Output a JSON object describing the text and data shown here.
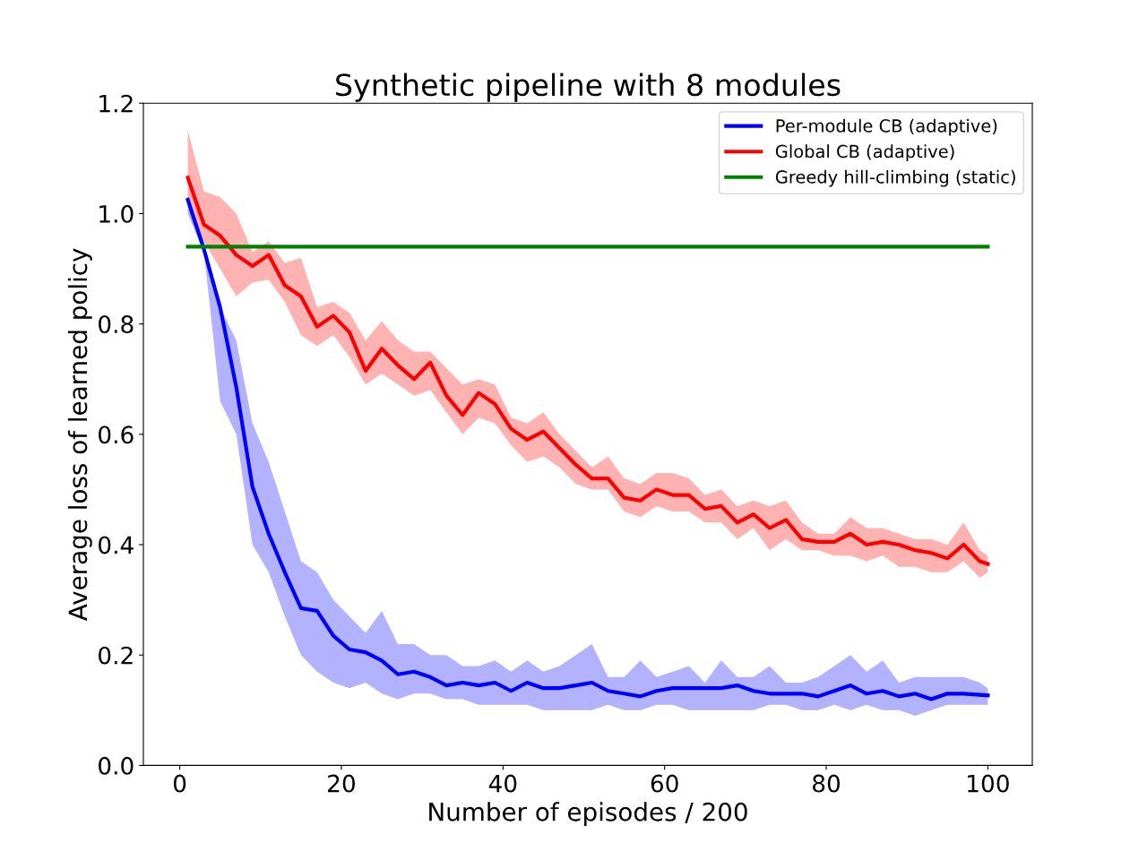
{
  "chart_data": {
    "type": "line",
    "title": "Synthetic pipeline with 8 modules",
    "xlabel": "Number of episodes / 200",
    "ylabel": "Average loss of learned policy",
    "xlim": [
      -4.5,
      105.5
    ],
    "xticks": [
      0,
      20,
      40,
      60,
      80,
      100
    ],
    "ylim": [
      0,
      1.2
    ],
    "yticks": [
      {
        "value": 0,
        "label": "0.0"
      },
      {
        "value": 0.2,
        "label": "0.2"
      },
      {
        "value": 0.4,
        "label": "0.4"
      },
      {
        "value": 0.6,
        "label": "0.6"
      },
      {
        "value": 0.8,
        "label": "0.8"
      },
      {
        "value": 1.0,
        "label": "1.0"
      },
      {
        "value": 1.2,
        "label": "1.2"
      }
    ],
    "grid": false,
    "legend": "top right",
    "line_style": "solid",
    "marker": "none",
    "series": [
      {
        "name": "Per-module CB (adaptive)",
        "color": "#0000ff",
        "x": [
          1,
          3,
          5,
          7,
          9,
          11,
          13,
          15,
          17,
          19,
          21,
          23,
          25,
          27,
          29,
          31,
          33,
          35,
          37,
          39,
          41,
          43,
          45,
          47,
          49,
          51,
          53,
          55,
          57,
          59,
          61,
          63,
          65,
          67,
          69,
          71,
          73,
          75,
          77,
          79,
          81,
          83,
          85,
          87,
          89,
          91,
          93,
          95,
          97,
          99,
          100
        ],
        "values": [
          1.025,
          0.935,
          0.83,
          0.685,
          0.505,
          0.42,
          0.35,
          0.285,
          0.28,
          0.235,
          0.21,
          0.205,
          0.19,
          0.165,
          0.17,
          0.16,
          0.145,
          0.15,
          0.145,
          0.15,
          0.135,
          0.15,
          0.14,
          0.14,
          0.145,
          0.15,
          0.135,
          0.13,
          0.125,
          0.135,
          0.14,
          0.14,
          0.14,
          0.14,
          0.145,
          0.135,
          0.13,
          0.13,
          0.13,
          0.125,
          0.135,
          0.145,
          0.13,
          0.135,
          0.125,
          0.13,
          0.12,
          0.13,
          0.13,
          0.128,
          0.127
        ],
        "lower": [
          1.0,
          0.93,
          0.66,
          0.6,
          0.4,
          0.35,
          0.27,
          0.2,
          0.17,
          0.15,
          0.14,
          0.15,
          0.13,
          0.12,
          0.13,
          0.13,
          0.12,
          0.12,
          0.11,
          0.11,
          0.11,
          0.11,
          0.1,
          0.1,
          0.1,
          0.1,
          0.11,
          0.1,
          0.1,
          0.11,
          0.11,
          0.1,
          0.1,
          0.1,
          0.1,
          0.1,
          0.11,
          0.11,
          0.1,
          0.1,
          0.11,
          0.1,
          0.11,
          0.1,
          0.1,
          0.09,
          0.1,
          0.11,
          0.11,
          0.11,
          0.11
        ],
        "upper": [
          1.03,
          0.95,
          0.83,
          0.77,
          0.62,
          0.55,
          0.46,
          0.37,
          0.35,
          0.3,
          0.27,
          0.24,
          0.28,
          0.22,
          0.22,
          0.2,
          0.2,
          0.18,
          0.18,
          0.19,
          0.17,
          0.19,
          0.17,
          0.18,
          0.2,
          0.22,
          0.16,
          0.16,
          0.19,
          0.16,
          0.17,
          0.18,
          0.15,
          0.19,
          0.16,
          0.16,
          0.18,
          0.15,
          0.15,
          0.16,
          0.18,
          0.2,
          0.17,
          0.19,
          0.15,
          0.16,
          0.16,
          0.16,
          0.16,
          0.15,
          0.14
        ]
      },
      {
        "name": "Global CB (adaptive)",
        "color": "#ff0000",
        "x": [
          1,
          3,
          5,
          7,
          9,
          11,
          13,
          15,
          17,
          19,
          21,
          23,
          25,
          27,
          29,
          31,
          33,
          35,
          37,
          39,
          41,
          43,
          45,
          47,
          49,
          51,
          53,
          55,
          57,
          59,
          61,
          63,
          65,
          67,
          69,
          71,
          73,
          75,
          77,
          79,
          81,
          83,
          85,
          87,
          89,
          91,
          93,
          95,
          97,
          99,
          100
        ],
        "values": [
          1.065,
          0.98,
          0.96,
          0.925,
          0.905,
          0.925,
          0.87,
          0.85,
          0.795,
          0.815,
          0.785,
          0.715,
          0.755,
          0.725,
          0.7,
          0.73,
          0.67,
          0.635,
          0.675,
          0.655,
          0.61,
          0.59,
          0.605,
          0.575,
          0.545,
          0.52,
          0.52,
          0.485,
          0.48,
          0.5,
          0.49,
          0.49,
          0.465,
          0.47,
          0.44,
          0.455,
          0.43,
          0.445,
          0.41,
          0.405,
          0.405,
          0.42,
          0.4,
          0.405,
          0.4,
          0.39,
          0.385,
          0.375,
          0.4,
          0.37,
          0.365
        ],
        "lower": [
          1.02,
          0.95,
          0.9,
          0.85,
          0.875,
          0.88,
          0.84,
          0.78,
          0.76,
          0.78,
          0.74,
          0.69,
          0.71,
          0.69,
          0.67,
          0.68,
          0.64,
          0.6,
          0.63,
          0.62,
          0.58,
          0.55,
          0.56,
          0.54,
          0.51,
          0.5,
          0.5,
          0.46,
          0.45,
          0.47,
          0.46,
          0.46,
          0.44,
          0.44,
          0.41,
          0.43,
          0.39,
          0.41,
          0.39,
          0.39,
          0.38,
          0.38,
          0.37,
          0.38,
          0.36,
          0.36,
          0.35,
          0.35,
          0.37,
          0.34,
          0.35
        ],
        "upper": [
          1.15,
          1.04,
          1.03,
          1.0,
          0.93,
          0.95,
          0.91,
          0.92,
          0.83,
          0.84,
          0.82,
          0.77,
          0.805,
          0.77,
          0.75,
          0.75,
          0.72,
          0.69,
          0.7,
          0.69,
          0.63,
          0.62,
          0.64,
          0.6,
          0.57,
          0.54,
          0.56,
          0.52,
          0.51,
          0.53,
          0.53,
          0.52,
          0.49,
          0.5,
          0.47,
          0.48,
          0.47,
          0.48,
          0.44,
          0.42,
          0.42,
          0.45,
          0.43,
          0.43,
          0.42,
          0.41,
          0.41,
          0.4,
          0.44,
          0.39,
          0.38
        ]
      },
      {
        "name": "Greedy hill-climbing (static)",
        "color": "#008000",
        "x": [
          1,
          100
        ],
        "values": [
          0.94,
          0.94
        ]
      }
    ]
  }
}
